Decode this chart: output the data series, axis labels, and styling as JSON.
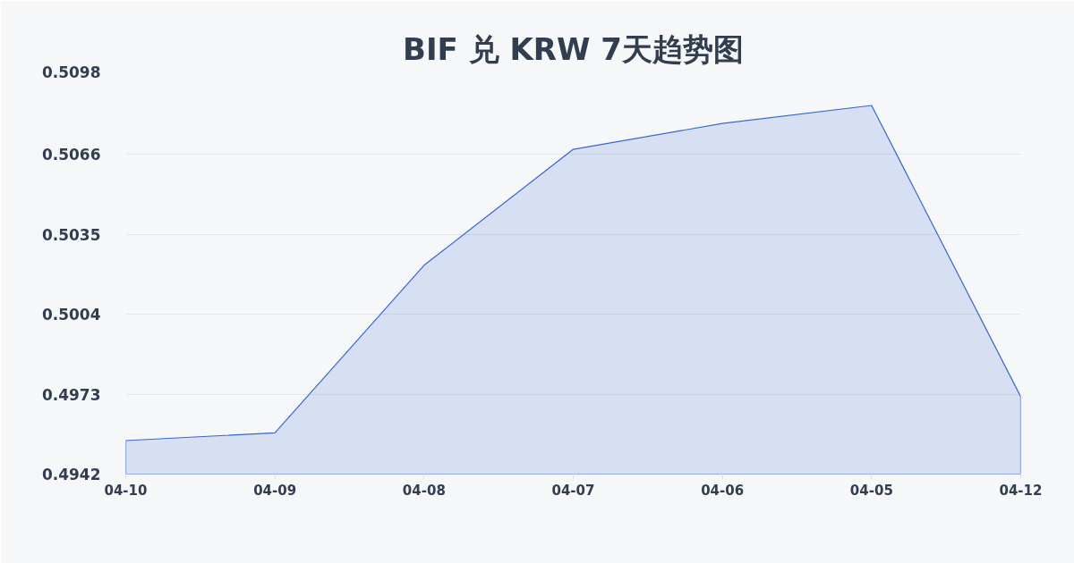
{
  "chart_data": {
    "type": "area",
    "title": "BIF 兑 KRW 7天趋势图",
    "categories": [
      "04-10",
      "04-09",
      "04-08",
      "04-07",
      "04-06",
      "04-05",
      "04-12"
    ],
    "values": [
      0.4955,
      0.4958,
      0.5023,
      0.5068,
      0.5078,
      0.5085,
      0.4972
    ],
    "color": "#3a66cc",
    "ylim": [
      0.4942,
      0.5098
    ],
    "yticks": [
      0.4942,
      0.4973,
      0.5004,
      0.5035,
      0.5066,
      0.5098
    ],
    "grid": "y"
  }
}
